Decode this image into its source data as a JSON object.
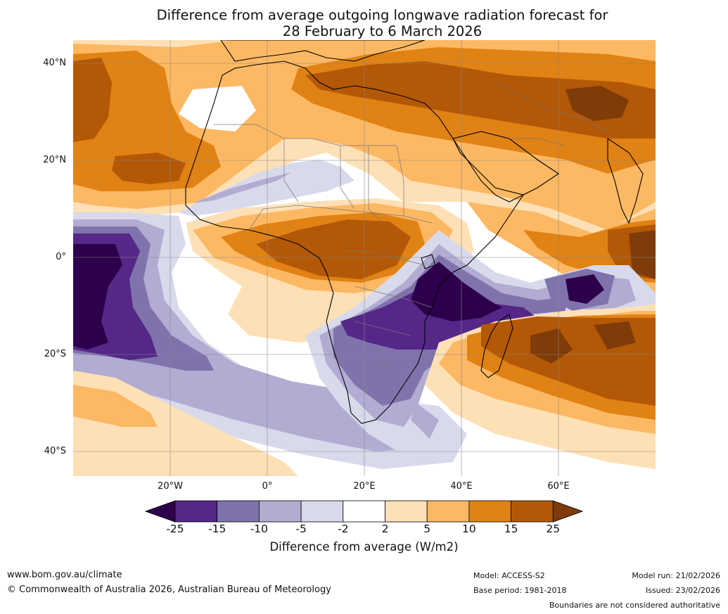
{
  "title": {
    "line1": "Difference from average outgoing longwave radiation forecast for",
    "line2": "28 February to 6 March 2026"
  },
  "map": {
    "lat_labels": [
      "40°N",
      "20°N",
      "0°",
      "20°S",
      "40°S"
    ],
    "lon_labels": [
      "20°W",
      "0°",
      "20°E",
      "40°E",
      "60°E"
    ],
    "colors": {
      "deep_purple": "#2d004b",
      "purple_15": "#542788",
      "purple_10": "#8073ac",
      "purple_5": "#b2abd2",
      "purple_2": "#d8daeb",
      "neutral": "#ffffff",
      "orange_2": "#fee0b6",
      "orange_5": "#fdb863",
      "orange_10": "#e08214",
      "orange_15": "#b35806",
      "deep_orange": "#7f3b08"
    }
  },
  "colorbar": {
    "ticks": [
      "-25",
      "-15",
      "-10",
      "-5",
      "-2",
      "2",
      "5",
      "10",
      "15",
      "25"
    ],
    "label": "Difference from average (W/m2)",
    "colors": [
      "#2d004b",
      "#542788",
      "#8073ac",
      "#b2abd2",
      "#d8daeb",
      "#ffffff",
      "#fee0b6",
      "#fdb863",
      "#e08214",
      "#b35806",
      "#7f3b08"
    ]
  },
  "footer": {
    "website": "www.bom.gov.au/climate",
    "copyright": "© Commonwealth of Australia 2026, Australian Bureau of Meteorology",
    "model": "Model: ACCESS-S2",
    "base_period": "Base period: 1981-2018",
    "model_run": "Model run: 21/02/2026",
    "issued": "Issued: 23/02/2026",
    "disclaimer": "Boundaries are not considered authoritative"
  }
}
